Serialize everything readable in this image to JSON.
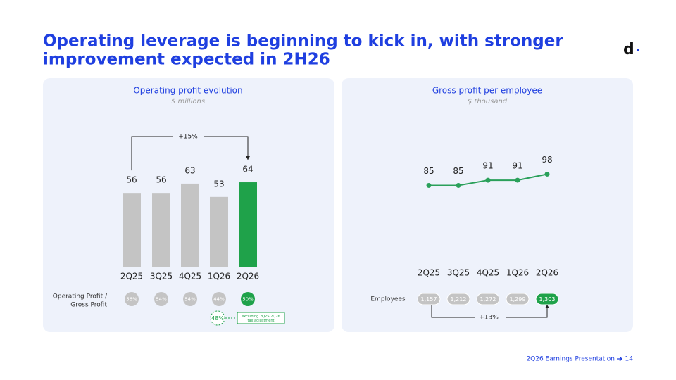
{
  "title_lines": [
    "Operating leverage is beginning to kick in, with stronger",
    "improvement expected in 2H26"
  ],
  "logo": "d",
  "footer": {
    "text": "2Q26 Earnings Presentation",
    "page": "14"
  },
  "chart_data": [
    {
      "type": "bar",
      "title": "Operating profit  evolution",
      "subtitle": "$ millions",
      "categories": [
        "2Q25",
        "3Q25",
        "4Q25",
        "1Q26",
        "2Q26"
      ],
      "values": [
        56,
        56,
        63,
        53,
        64
      ],
      "colors": [
        "#c4c4c4",
        "#c4c4c4",
        "#c4c4c4",
        "#c4c4c4",
        "#1fa24a"
      ],
      "annotation": "+15%",
      "ratio_row": {
        "label_lines": [
          "Operating Profit  /",
          "Gross Profit"
        ],
        "values": [
          56,
          54,
          54,
          44,
          50
        ],
        "value_labels": [
          "56%",
          "54%",
          "54%",
          "44%",
          "50%"
        ]
      },
      "adjusted": {
        "value": 48,
        "value_label": "48%",
        "note": "excluding 2Q25-2Q26 tax adjustment"
      }
    },
    {
      "type": "line",
      "title": "Gross profit per employee",
      "subtitle": "$ thousand",
      "categories": [
        "2Q25",
        "3Q25",
        "4Q25",
        "1Q26",
        "2Q26"
      ],
      "values": [
        85,
        85,
        91,
        91,
        98
      ],
      "color": "#2aa05a",
      "annotation": "+13%",
      "employees_row": {
        "label": "Employees",
        "values": [
          1157,
          1212,
          1272,
          1299,
          1303
        ],
        "value_labels": [
          "1,157",
          "1,212",
          "1,272",
          "1,299",
          "1,303"
        ]
      }
    }
  ]
}
